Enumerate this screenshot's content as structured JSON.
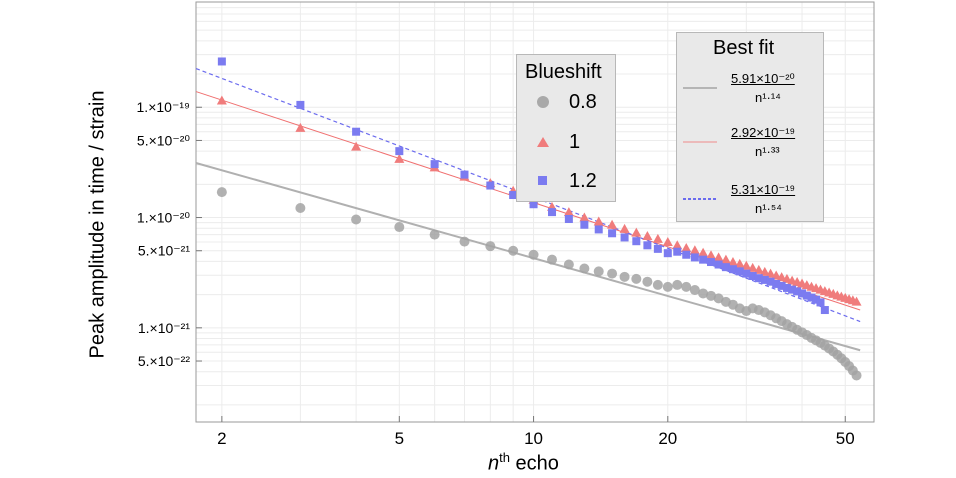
{
  "chart_data": {
    "type": "scatter",
    "xlabel_main": "n",
    "xlabel_sup": "th",
    "xlabel_rest": " echo",
    "ylabel": "Peak amplitude in time / strain",
    "x_scale": "log",
    "y_scale": "log",
    "xlim": [
      1.75,
      58
    ],
    "ylim": [
      1.4e-22,
      9e-19
    ],
    "x_ticks": [
      {
        "value": 2,
        "label": "2"
      },
      {
        "value": 5,
        "label": "5"
      },
      {
        "value": 10,
        "label": "10"
      },
      {
        "value": 20,
        "label": "20"
      },
      {
        "value": 50,
        "label": "50"
      }
    ],
    "y_ticks": [
      {
        "value": 1e-19,
        "label": "1.×10⁻¹⁹"
      },
      {
        "value": 5e-20,
        "label": "5.×10⁻²⁰"
      },
      {
        "value": 1e-20,
        "label": "1.×10⁻²⁰"
      },
      {
        "value": 5e-21,
        "label": "5.×10⁻²¹"
      },
      {
        "value": 1e-21,
        "label": "1.×10⁻²¹"
      },
      {
        "value": 5e-22,
        "label": "5.×10⁻²²"
      }
    ],
    "grid": true,
    "legend_markers": {
      "title": "Blueshift",
      "entries": [
        {
          "label": "0.8",
          "marker": "circle",
          "color": "#a9a9a9"
        },
        {
          "label": "1",
          "marker": "triangle",
          "color": "#f07c7c"
        },
        {
          "label": "1.2",
          "marker": "square",
          "color": "#7b7bf0"
        }
      ]
    },
    "legend_fits": {
      "title": "Best fit",
      "entries": [
        {
          "numerator": "5.91×10⁻²⁰",
          "denominator": "n¹·¹⁴",
          "color": "#b5b5b5",
          "style": "solid"
        },
        {
          "numerator": "2.92×10⁻¹⁹",
          "denominator": "n¹·³³",
          "color": "#f08a8a",
          "style": "solid"
        },
        {
          "numerator": "5.31×10⁻¹⁹",
          "denominator": "n¹·⁵⁴",
          "color": "#6b6bee",
          "style": "dashed"
        }
      ]
    },
    "fit_lines": [
      {
        "coef": 5.91e-20,
        "exp": 1.14,
        "color": "#b0b0b0",
        "dashed": false
      },
      {
        "coef": 2.92e-19,
        "exp": 1.33,
        "color": "#f07070",
        "dashed": false
      },
      {
        "coef": 5.31e-19,
        "exp": 1.54,
        "color": "#6b6bee",
        "dashed": true
      }
    ],
    "series": [
      {
        "name": "0.8",
        "marker": "circle",
        "color": "#a3a3a3",
        "x": [
          2,
          3,
          4,
          5,
          6,
          7,
          8,
          9,
          10,
          11,
          12,
          13,
          14,
          15,
          16,
          17,
          18,
          19,
          20,
          21,
          22,
          23,
          24,
          25,
          26,
          27,
          28,
          29,
          30,
          31,
          32,
          33,
          34,
          35,
          36,
          37,
          38,
          39,
          40,
          41,
          42,
          43,
          44,
          45,
          46,
          47,
          48,
          49,
          50,
          51,
          52,
          53
        ],
        "y": [
          1.7e-20,
          1.22e-20,
          9.6e-21,
          8.2e-21,
          7e-21,
          6.05e-21,
          5.5e-21,
          5e-21,
          4.6e-21,
          4.15e-21,
          3.75e-21,
          3.45e-21,
          3.25e-21,
          3.1e-21,
          2.9e-21,
          2.78e-21,
          2.62e-21,
          2.45e-21,
          2.35e-21,
          2.45e-21,
          2.35e-21,
          2.2e-21,
          2.05e-21,
          1.95e-21,
          1.85e-21,
          1.72e-21,
          1.62e-21,
          1.5e-21,
          1.42e-21,
          1.5e-21,
          1.45e-21,
          1.38e-21,
          1.3e-21,
          1.22e-21,
          1.15e-21,
          1.08e-21,
          1.02e-21,
          9.6e-22,
          9.1e-22,
          8.6e-22,
          8.1e-22,
          7.7e-22,
          7.3e-22,
          6.9e-22,
          6.5e-22,
          6.1e-22,
          5.7e-22,
          5.3e-22,
          4.9e-22,
          4.5e-22,
          4.1e-22,
          3.7e-22
        ]
      },
      {
        "name": "1",
        "marker": "triangle",
        "color": "#f07c7c",
        "x": [
          2,
          3,
          4,
          5,
          6,
          7,
          8,
          9,
          10,
          11,
          12,
          13,
          14,
          15,
          16,
          17,
          18,
          19,
          20,
          21,
          22,
          23,
          24,
          25,
          26,
          27,
          28,
          29,
          30,
          31,
          32,
          33,
          34,
          35,
          36,
          37,
          38,
          39,
          40,
          41,
          42,
          43,
          44,
          45,
          46,
          47,
          48,
          49,
          50,
          51,
          52,
          53
        ],
        "y": [
          1.15e-19,
          6.5e-20,
          4.4e-20,
          3.4e-20,
          2.85e-20,
          2.35e-20,
          2.05e-20,
          1.75e-20,
          1.45e-20,
          1.25e-20,
          1.12e-20,
          1e-20,
          9.2e-21,
          8.6e-21,
          7.9e-21,
          7.3e-21,
          6.8e-21,
          6.4e-21,
          6e-21,
          5.6e-21,
          5.3e-21,
          5.05e-21,
          4.8e-21,
          4.55e-21,
          4.35e-21,
          4.15e-21,
          3.95e-21,
          3.8e-21,
          3.65e-21,
          3.5e-21,
          3.35e-21,
          3.22e-21,
          3.1e-21,
          2.98e-21,
          2.88e-21,
          2.78e-21,
          2.68e-21,
          2.6e-21,
          2.52e-21,
          2.44e-21,
          2.36e-21,
          2.29e-21,
          2.22e-21,
          2.15e-21,
          2.09e-21,
          2.03e-21,
          1.97e-21,
          1.92e-21,
          1.87e-21,
          1.82e-21,
          1.78e-21,
          1.73e-21
        ]
      },
      {
        "name": "1.2",
        "marker": "square",
        "color": "#7b7bf0",
        "x": [
          2,
          3,
          4,
          5,
          6,
          7,
          8,
          9,
          10,
          11,
          12,
          13,
          14,
          15,
          16,
          17,
          18,
          19,
          20,
          21,
          22,
          23,
          24,
          25,
          26,
          27,
          28,
          29,
          30,
          31,
          32,
          33,
          34,
          35,
          36,
          37,
          38,
          39,
          40,
          41,
          42,
          43,
          44,
          45
        ],
        "y": [
          2.6e-19,
          1.05e-19,
          6e-20,
          4e-20,
          3.05e-20,
          2.45e-20,
          1.95e-20,
          1.6e-20,
          1.32e-20,
          1.12e-20,
          9.7e-21,
          8.6e-21,
          7.8e-21,
          7.2e-21,
          6.6e-21,
          6.1e-21,
          5.6e-21,
          5.2e-21,
          4.75e-21,
          4.9e-21,
          4.6e-21,
          4.35e-21,
          4.15e-21,
          3.95e-21,
          3.75e-21,
          3.55e-21,
          3.4e-21,
          3.25e-21,
          3.1e-21,
          2.95e-21,
          2.82e-21,
          2.72e-21,
          2.62e-21,
          2.5e-21,
          2.4e-21,
          2.3e-21,
          2.22e-21,
          2.14e-21,
          2.05e-21,
          1.96e-21,
          1.88e-21,
          1.8e-21,
          1.7e-21,
          1.45e-21
        ]
      }
    ]
  }
}
